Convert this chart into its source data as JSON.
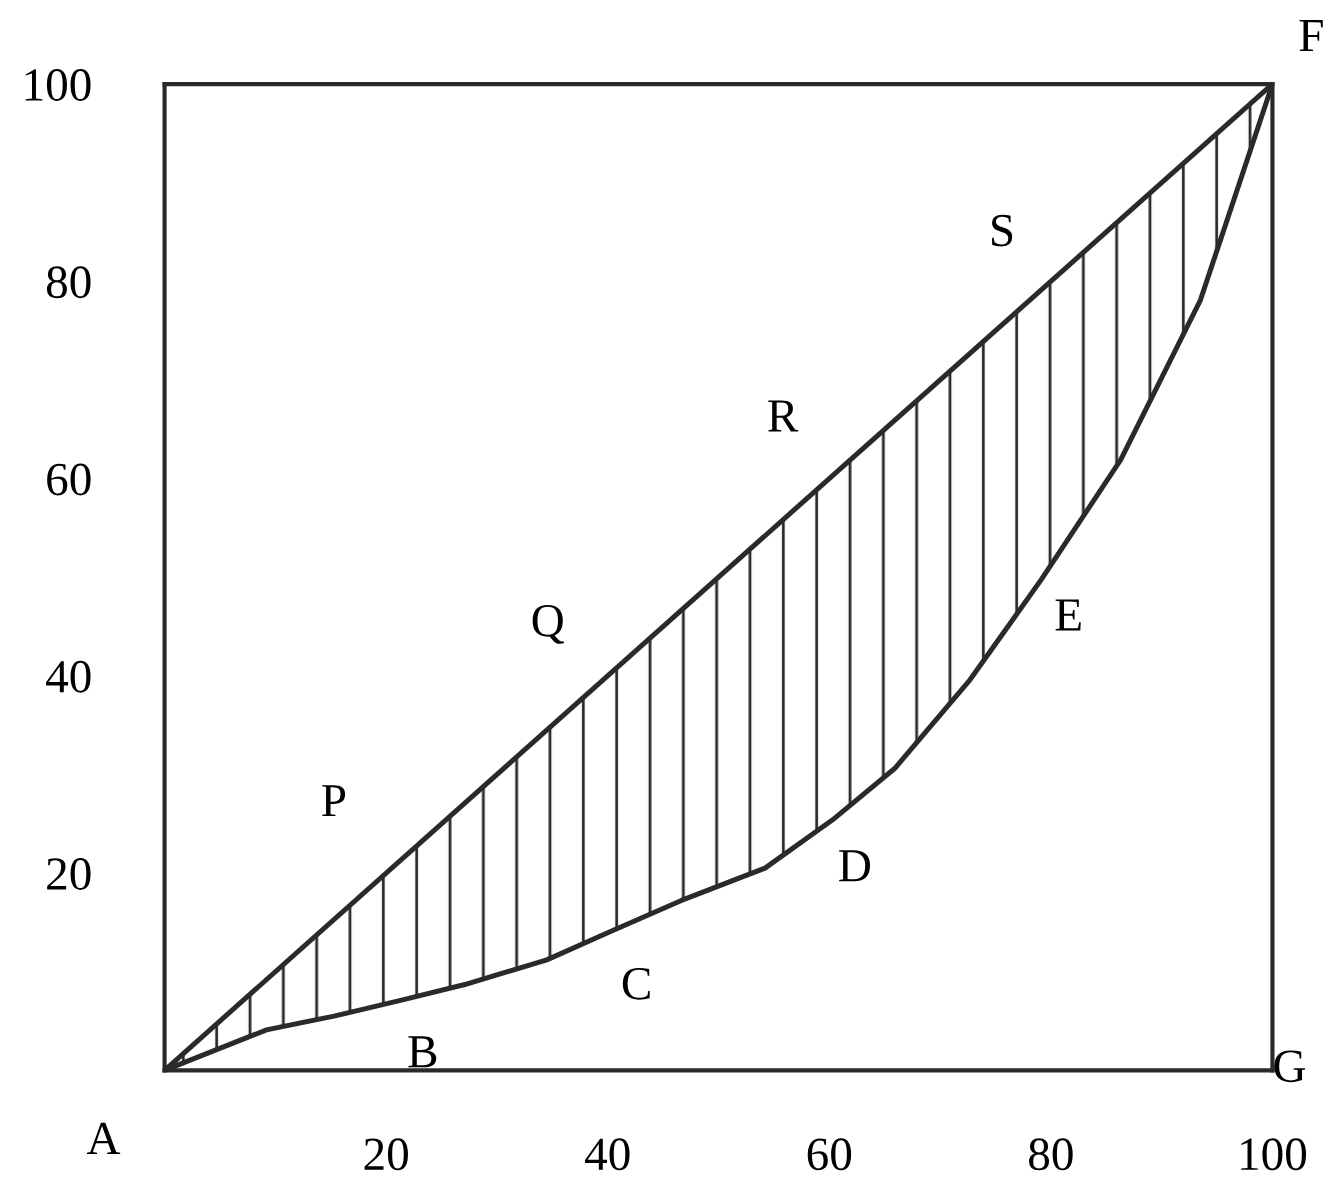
{
  "chart_data": {
    "type": "line",
    "xlim": [
      0,
      100
    ],
    "ylim": [
      0,
      100
    ],
    "xticks": [
      20,
      40,
      60,
      80,
      100
    ],
    "yticks": [
      20,
      40,
      60,
      80,
      100
    ],
    "grid": false,
    "legend": false,
    "marker": "none",
    "line_style": "solid",
    "series": [
      {
        "color": "#2a2a2a",
        "x": [
          0,
          100
        ],
        "values": [
          0,
          100
        ]
      },
      {
        "color": "#2a2a2a",
        "x": [
          0,
          9.2,
          15.3,
          21.3,
          27.1,
          34.5,
          40.1,
          46.6,
          54.2,
          60.3,
          65.9,
          72.7,
          79.1,
          86.3,
          93.5,
          100
        ],
        "values": [
          0,
          4.1,
          5.5,
          7.1,
          8.7,
          11.2,
          14.0,
          17.2,
          20.5,
          25.4,
          30.6,
          39.6,
          49.7,
          61.9,
          78.1,
          100
        ],
        "lower": [
          0,
          4.1,
          5.5,
          7.1,
          8.7,
          11.2,
          14.0,
          17.2,
          20.5,
          25.4,
          30.6,
          39.6,
          49.7,
          61.9,
          78.1,
          100
        ],
        "upper": [
          0,
          9.2,
          15.3,
          21.3,
          27.1,
          34.5,
          40.1,
          46.6,
          54.2,
          60.3,
          65.9,
          72.7,
          79.1,
          86.3,
          93.5,
          100
        ]
      }
    ],
    "annotations": [
      {
        "text": "A",
        "x": 0,
        "y": 0
      },
      {
        "text": "B",
        "x": 21.3,
        "y": 7.1
      },
      {
        "text": "C",
        "x": 40.1,
        "y": 14.0
      },
      {
        "text": "D",
        "x": 60.3,
        "y": 25.4
      },
      {
        "text": "E",
        "x": 79.1,
        "y": 49.7
      },
      {
        "text": "F",
        "x": 100,
        "y": 100
      },
      "G",
      {
        "text": "P",
        "x": 21.3,
        "y": 21.3
      },
      {
        "text": "Q",
        "x": 40.1,
        "y": 40.1
      },
      {
        "text": "R",
        "x": 60.3,
        "y": 60.3
      },
      {
        "text": "S",
        "x": 79.1,
        "y": 79.1
      }
    ]
  }
}
